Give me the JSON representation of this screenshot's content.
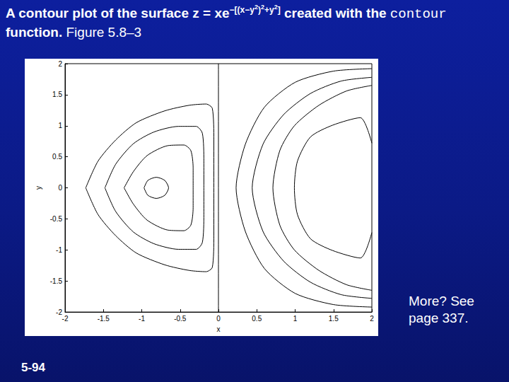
{
  "slide": {
    "title": [
      {
        "text": "A contour plot of the surface z = xe",
        "style": "bold"
      },
      {
        "text": "−[(x−y",
        "style": "sup"
      },
      {
        "text": "2",
        "style": "sup2"
      },
      {
        "text": ")",
        "style": "sup"
      },
      {
        "text": "2",
        "style": "sup2"
      },
      {
        "text": "+y",
        "style": "sup"
      },
      {
        "text": "2",
        "style": "sup2"
      },
      {
        "text": "]",
        "style": "sup"
      },
      {
        "text": " created with the ",
        "style": "bold"
      },
      {
        "text": "contour",
        "style": "mono"
      },
      {
        "text": " function.",
        "style": "bold"
      },
      {
        "text": "  Figure 5.8–3",
        "style": "normal"
      }
    ],
    "note": "More? See page 337.",
    "page": "5-94"
  },
  "chart_data": {
    "type": "contour",
    "xlabel": "x",
    "ylabel": "y",
    "xlim": [
      -2,
      2
    ],
    "ylim": [
      -2,
      2
    ],
    "xticks": [
      -2,
      -1.5,
      -1,
      -0.5,
      0,
      0.5,
      1,
      1.5,
      2
    ],
    "yticks": [
      -2,
      -1.5,
      -1,
      -0.5,
      0,
      0.5,
      1,
      1.5,
      2
    ],
    "grid": false,
    "color": "#000000",
    "series": [
      {
        "x": [
          -1.73,
          -1.57,
          -1.34,
          -1.07,
          -0.7,
          -0.38,
          -0.16,
          -0.08,
          -0.06,
          -0.06,
          -0.06,
          -0.08,
          -0.16,
          -0.38,
          -0.7,
          -1.07,
          -1.34,
          -1.57,
          -1.73
        ],
        "y": [
          0,
          0.43,
          0.77,
          1.05,
          1.24,
          1.33,
          1.35,
          1.28,
          0.77,
          0,
          -0.77,
          -1.28,
          -1.35,
          -1.33,
          -1.24,
          -1.05,
          -0.77,
          -0.43,
          0
        ]
      },
      {
        "x": [
          -1.48,
          -1.34,
          -1.11,
          -0.84,
          -0.52,
          -0.29,
          -0.21,
          -0.19,
          -0.19,
          -0.19,
          -0.21,
          -0.29,
          -0.52,
          -0.84,
          -1.11,
          -1.34,
          -1.48
        ],
        "y": [
          0,
          0.38,
          0.71,
          0.9,
          0.99,
          0.99,
          0.88,
          0.43,
          0,
          -0.43,
          -0.88,
          -0.99,
          -0.99,
          -0.9,
          -0.71,
          -0.38,
          0
        ]
      },
      {
        "x": [
          -1.23,
          -1.11,
          -0.93,
          -0.66,
          -0.45,
          -0.36,
          -0.33,
          -0.33,
          -0.33,
          -0.36,
          -0.45,
          -0.66,
          -0.93,
          -1.11,
          -1.23
        ],
        "y": [
          0,
          0.26,
          0.52,
          0.68,
          0.69,
          0.6,
          0.32,
          0,
          -0.32,
          -0.6,
          -0.69,
          -0.68,
          -0.52,
          -0.26,
          0
        ]
      },
      {
        "x": [
          -0.97,
          -0.92,
          -0.81,
          -0.7,
          -0.65,
          -0.7,
          -0.81,
          -0.92,
          -0.97
        ],
        "y": [
          0,
          0.12,
          0.17,
          0.12,
          0,
          -0.12,
          -0.17,
          -0.12,
          0
        ]
      },
      {
        "x": [
          0,
          0
        ],
        "y": [
          -2,
          2
        ]
      },
      {
        "x": [
          2,
          1.5,
          1.0,
          0.6,
          0.35,
          0.23,
          0.35,
          0.6,
          1.0,
          1.5,
          2
        ],
        "y": [
          1.92,
          1.88,
          1.7,
          1.3,
          0.7,
          0,
          -0.7,
          -1.3,
          -1.7,
          -1.88,
          -1.92
        ]
      },
      {
        "x": [
          2,
          1.6,
          1.2,
          0.85,
          0.58,
          0.44,
          0.58,
          0.85,
          1.2,
          1.6,
          2
        ],
        "y": [
          1.78,
          1.72,
          1.52,
          1.18,
          0.7,
          0,
          -0.7,
          -1.18,
          -1.52,
          -1.72,
          -1.78
        ]
      },
      {
        "x": [
          2,
          1.67,
          1.31,
          0.99,
          0.8,
          0.71,
          0.8,
          0.99,
          1.31,
          1.67,
          2
        ],
        "y": [
          1.65,
          1.56,
          1.33,
          1.0,
          0.6,
          0,
          -0.6,
          -1.0,
          -1.33,
          -1.56,
          -1.65
        ]
      },
      {
        "x": [
          2,
          1.85,
          1.49,
          1.2,
          1.03,
          0.99,
          1.03,
          1.2,
          1.49,
          1.85,
          2
        ],
        "y": [
          0.72,
          1.13,
          1.01,
          0.82,
          0.43,
          0,
          -0.43,
          -0.82,
          -1.01,
          -1.13,
          -0.72
        ]
      }
    ]
  }
}
